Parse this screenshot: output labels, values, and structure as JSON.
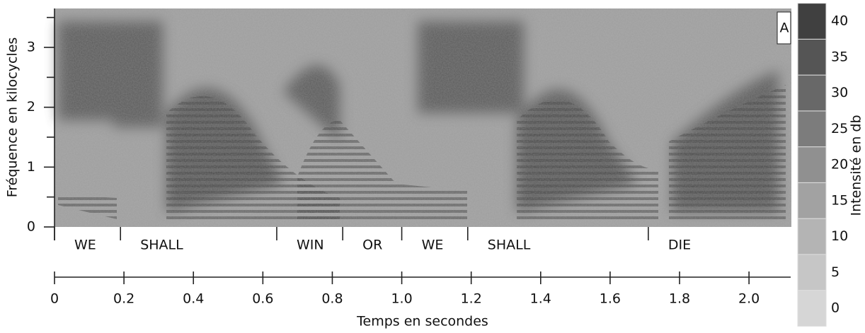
{
  "chart_data": {
    "type": "spectrogram",
    "panel_label": "A",
    "xlabel": "Temps en secondes",
    "ylabel": "Fréquence en kilocycles",
    "xlim": [
      0,
      2.12
    ],
    "xticks": [
      0,
      0.2,
      0.4,
      0.6,
      0.8,
      {
        "value": 1,
        "label": "1.0"
      },
      1.2,
      1.4,
      1.6,
      1.8,
      {
        "value": 2,
        "label": "2.0"
      }
    ],
    "ylim": [
      0,
      3.65
    ],
    "yticks": [
      0,
      1,
      2,
      3
    ],
    "yminor_ticks": [
      0.5,
      1.5,
      2.5,
      3.5
    ],
    "words": [
      {
        "label": "WE",
        "start": 0,
        "end": 0.19
      },
      {
        "label": "SHALL",
        "start": 0.19,
        "end": 0.64
      },
      {
        "label": "WIN",
        "start": 0.64,
        "end": 0.83
      },
      {
        "label": "OR",
        "start": 0.83,
        "end": 1.0
      },
      {
        "label": "WE",
        "start": 1.0,
        "end": 1.19
      },
      {
        "label": "SHALL",
        "start": 1.19,
        "end": 1.71
      },
      {
        "label": "DIE",
        "start": 1.71,
        "end": 2.12
      }
    ],
    "colorbar": {
      "label": "Intensité en db",
      "ticks": [
        0,
        5,
        10,
        15,
        20,
        25,
        30,
        35,
        40
      ],
      "colors": [
        "#d6d6d6",
        "#c6c6c6",
        "#b4b4b4",
        "#a2a2a2",
        "#909090",
        "#7c7c7c",
        "#686868",
        "#555555",
        "#404040"
      ]
    }
  }
}
